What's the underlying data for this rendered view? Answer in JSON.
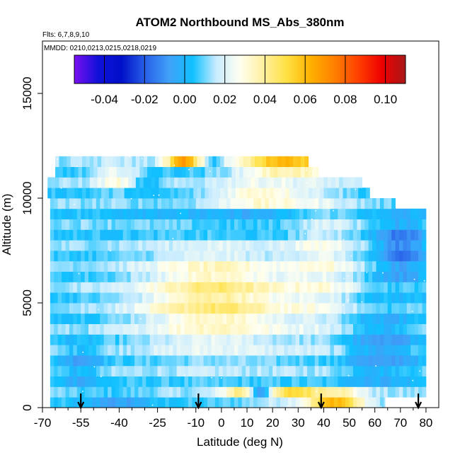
{
  "chart_data": {
    "type": "heatmap",
    "title": "ATOM2 Northbound MS_Abs_380nm",
    "flights_label": "Flts: 6,7,8,9,10",
    "dates_label": "MMDD: 0210,0213,0215,0218,0219",
    "xlabel": "Latitude (deg N)",
    "ylabel": "Altitude (m)",
    "xlim": [
      -70,
      85
    ],
    "ylim": [
      0,
      17500
    ],
    "x_ticks": [
      -70,
      -55,
      -40,
      -25,
      -10,
      0,
      10,
      20,
      30,
      40,
      50,
      60,
      70,
      80
    ],
    "x_tick_labels": [
      "-70",
      "-55",
      "-40",
      "-25",
      "-10",
      "0",
      "10",
      "20",
      "30",
      "40",
      "50",
      "60",
      "70",
      "80"
    ],
    "y_ticks": [
      0,
      5000,
      10000,
      15000
    ],
    "y_tick_labels": [
      "0",
      "5000",
      "10000",
      "15000"
    ],
    "colorbar": {
      "range": [
        -0.055,
        0.11
      ],
      "ticks": [
        -0.04,
        -0.02,
        0.0,
        0.02,
        0.04,
        0.06,
        0.08,
        0.1
      ],
      "tick_labels": [
        "-0.04",
        "-0.02",
        "0.00",
        "0.02",
        "0.04",
        "0.06",
        "0.08",
        "0.10"
      ],
      "colors": [
        "#7a10f0",
        "#1010d8",
        "#0010c8",
        "#2860e8",
        "#40a0f8",
        "#10c0ff",
        "#c8ecff",
        "#fffff0",
        "#fff0a0",
        "#ffe040",
        "#ffb000",
        "#ff8000",
        "#ff4000",
        "#ee0000",
        "#a81818"
      ]
    },
    "profile_latitudes": [
      -55,
      -9,
      39,
      77
    ],
    "altitude_band_tops": [
      500,
      1000,
      1500,
      2000,
      2500,
      3000,
      3500,
      4000,
      4500,
      5000,
      5500,
      6000,
      6500,
      7000,
      7500,
      8000,
      8500,
      9000,
      9500,
      10000,
      10500,
      11000,
      11500,
      12000
    ],
    "latitude_extent_by_band": [
      [
        -67,
        64
      ],
      [
        -67,
        80
      ],
      [
        -67,
        80
      ],
      [
        -67,
        80
      ],
      [
        -67,
        80
      ],
      [
        -67,
        80
      ],
      [
        -67,
        80
      ],
      [
        -67,
        80
      ],
      [
        -67,
        80
      ],
      [
        -67,
        80
      ],
      [
        -67,
        80
      ],
      [
        -67,
        80
      ],
      [
        -67,
        80
      ],
      [
        -67,
        80
      ],
      [
        -67,
        80
      ],
      [
        -67,
        80
      ],
      [
        -67,
        80
      ],
      [
        -67,
        80
      ],
      [
        -67,
        80
      ],
      [
        -67,
        68
      ],
      [
        -68,
        58
      ],
      [
        -68,
        55
      ],
      [
        -65,
        38
      ],
      [
        -65,
        34
      ]
    ]
  }
}
